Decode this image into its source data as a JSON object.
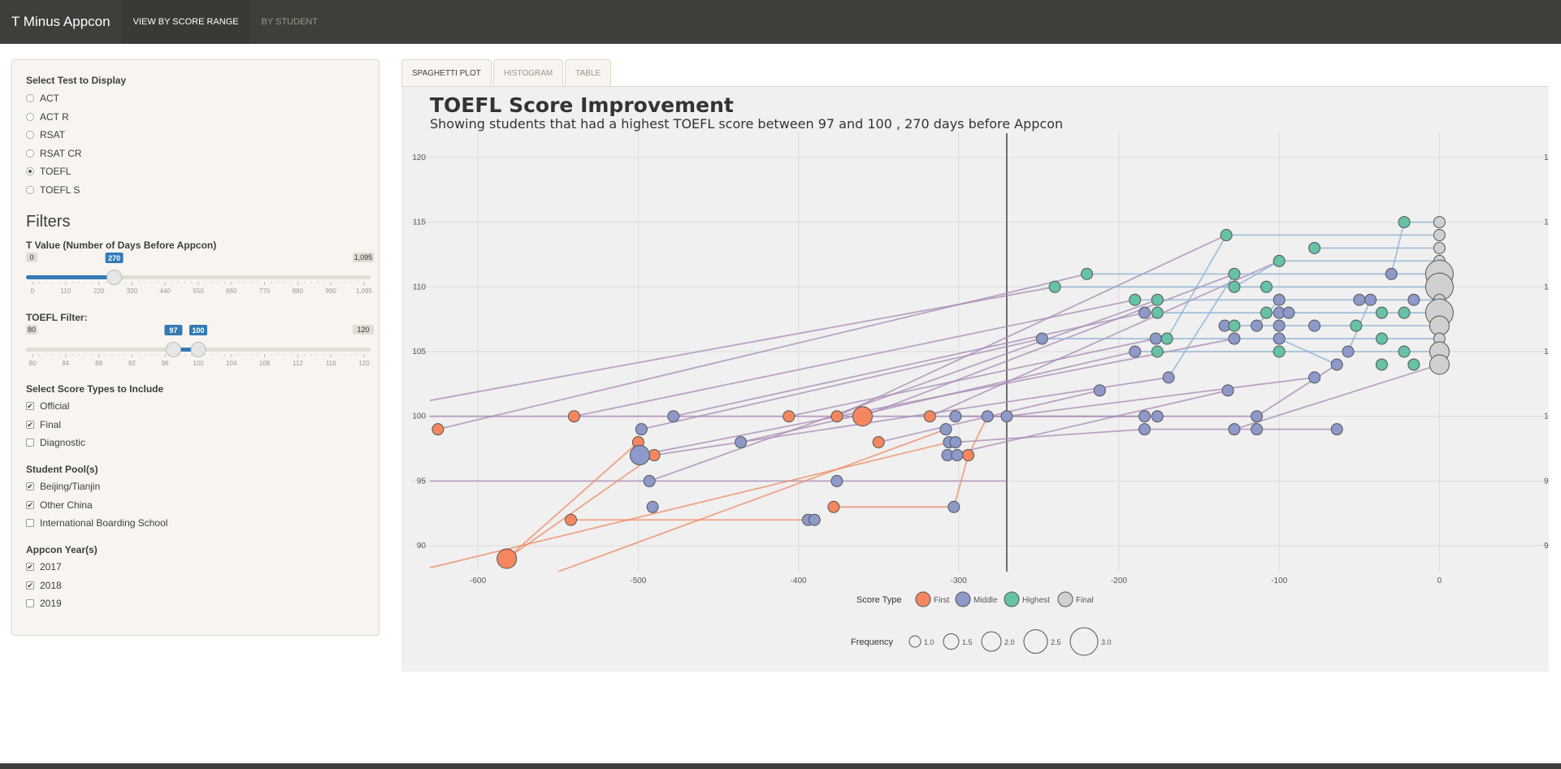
{
  "navbar": {
    "brand": "T Minus Appcon",
    "tabs": [
      {
        "label": "VIEW BY SCORE RANGE",
        "active": true
      },
      {
        "label": "BY STUDENT",
        "active": false
      }
    ]
  },
  "sidebar": {
    "test_select": {
      "label": "Select Test to Display",
      "options": [
        "ACT",
        "ACT R",
        "RSAT",
        "RSAT CR",
        "TOEFL",
        "TOEFL S"
      ],
      "selected": "TOEFL"
    },
    "filters_title": "Filters",
    "t_value": {
      "label": "T Value (Number of Days Before Appcon)",
      "min": 0,
      "max": 1095,
      "value": 270,
      "min_label": "0",
      "max_label": "1,095",
      "value_label": "270",
      "ticks": [
        "0",
        "110",
        "220",
        "330",
        "440",
        "550",
        "660",
        "770",
        "880",
        "990",
        "1,095"
      ]
    },
    "toefl_filter": {
      "label": "TOEFL Filter:",
      "min": 80,
      "max": 120,
      "low": 97,
      "high": 100,
      "min_label": "80",
      "max_label": "120",
      "low_label": "97",
      "high_label": "100",
      "ticks": [
        "80",
        "84",
        "88",
        "92",
        "96",
        "100",
        "104",
        "108",
        "112",
        "116",
        "120"
      ]
    },
    "score_types": {
      "label": "Select Score Types to Include",
      "options": [
        {
          "label": "Official",
          "checked": true
        },
        {
          "label": "Final",
          "checked": true
        },
        {
          "label": "Diagnostic",
          "checked": false
        }
      ]
    },
    "student_pools": {
      "label": "Student Pool(s)",
      "options": [
        {
          "label": "Beijing/Tianjin",
          "checked": true
        },
        {
          "label": "Other China",
          "checked": true
        },
        {
          "label": "International Boarding School",
          "checked": false
        }
      ]
    },
    "appcon_years": {
      "label": "Appcon Year(s)",
      "options": [
        {
          "label": "2017",
          "checked": true
        },
        {
          "label": "2018",
          "checked": true
        },
        {
          "label": "2019",
          "checked": false
        }
      ]
    }
  },
  "tabs": [
    {
      "label": "SPAGHETTI PLOT",
      "active": true
    },
    {
      "label": "HISTOGRAM",
      "active": false
    },
    {
      "label": "TABLE",
      "active": false
    }
  ],
  "colors": {
    "first": "#f4875f",
    "middle": "#8d99c9",
    "highest": "#66c2a5",
    "final": "#d0d0d0",
    "navbar": "#3e3f3a",
    "slider": "#337ab7"
  },
  "chart_data": {
    "type": "scatter",
    "title": "TOEFL Score Improvement",
    "subtitle": "Showing students that had a highest TOEFL score between 97 and 100 , 270 days before Appcon",
    "x_ticks": [
      "-600",
      "-500",
      "-400",
      "-300",
      "-200",
      "-100",
      "0"
    ],
    "y_ticks": [
      "90",
      "95",
      "100",
      "105",
      "110",
      "115",
      "120"
    ],
    "xlim": [
      -630,
      50
    ],
    "ylim": [
      88,
      122
    ],
    "vline_x": -270,
    "legend": {
      "score_type_title": "Score Type",
      "score_types": [
        "First",
        "Middle",
        "Highest",
        "Final"
      ],
      "frequency_title": "Frequency",
      "frequencies": [
        "1.0",
        "1.5",
        "2.0",
        "2.5",
        "3.0"
      ]
    },
    "points": [
      {
        "x": -625,
        "y": 99,
        "type": "First",
        "freq": 1
      },
      {
        "x": -540,
        "y": 100,
        "type": "First",
        "freq": 1
      },
      {
        "x": -542,
        "y": 92,
        "type": "First",
        "freq": 1
      },
      {
        "x": -582,
        "y": 89,
        "type": "First",
        "freq": 2
      },
      {
        "x": -500,
        "y": 98,
        "type": "First",
        "freq": 1
      },
      {
        "x": -490,
        "y": 97,
        "type": "First",
        "freq": 1
      },
      {
        "x": -406,
        "y": 100,
        "type": "First",
        "freq": 1
      },
      {
        "x": -376,
        "y": 100,
        "type": "First",
        "freq": 1
      },
      {
        "x": -360,
        "y": 100,
        "type": "First",
        "freq": 2
      },
      {
        "x": -350,
        "y": 98,
        "type": "First",
        "freq": 1
      },
      {
        "x": -378,
        "y": 93,
        "type": "First",
        "freq": 1
      },
      {
        "x": -318,
        "y": 100,
        "type": "First",
        "freq": 1
      },
      {
        "x": -294,
        "y": 97,
        "type": "First",
        "freq": 1
      },
      {
        "x": -478,
        "y": 100,
        "type": "Middle",
        "freq": 1
      },
      {
        "x": -498,
        "y": 99,
        "type": "Middle",
        "freq": 1
      },
      {
        "x": -499,
        "y": 97,
        "type": "Middle",
        "freq": 2
      },
      {
        "x": -493,
        "y": 95,
        "type": "Middle",
        "freq": 1
      },
      {
        "x": -491,
        "y": 93,
        "type": "Middle",
        "freq": 1
      },
      {
        "x": -436,
        "y": 98,
        "type": "Middle",
        "freq": 1
      },
      {
        "x": -376,
        "y": 95,
        "type": "Middle",
        "freq": 1
      },
      {
        "x": -394,
        "y": 92,
        "type": "Middle",
        "freq": 1
      },
      {
        "x": -390,
        "y": 92,
        "type": "Middle",
        "freq": 1
      },
      {
        "x": -302,
        "y": 100,
        "type": "Middle",
        "freq": 1
      },
      {
        "x": -308,
        "y": 99,
        "type": "Middle",
        "freq": 1
      },
      {
        "x": -306,
        "y": 98,
        "type": "Middle",
        "freq": 1
      },
      {
        "x": -302,
        "y": 98,
        "type": "Middle",
        "freq": 1
      },
      {
        "x": -307,
        "y": 97,
        "type": "Middle",
        "freq": 1
      },
      {
        "x": -301,
        "y": 97,
        "type": "Middle",
        "freq": 1
      },
      {
        "x": -303,
        "y": 93,
        "type": "Middle",
        "freq": 1
      },
      {
        "x": -282,
        "y": 100,
        "type": "Middle",
        "freq": 1
      },
      {
        "x": -270,
        "y": 100,
        "type": "Middle",
        "freq": 1
      },
      {
        "x": -248,
        "y": 106,
        "type": "Middle",
        "freq": 1
      },
      {
        "x": -212,
        "y": 102,
        "type": "Middle",
        "freq": 1
      },
      {
        "x": -190,
        "y": 105,
        "type": "Middle",
        "freq": 1
      },
      {
        "x": -184,
        "y": 108,
        "type": "Middle",
        "freq": 1
      },
      {
        "x": -184,
        "y": 100,
        "type": "Middle",
        "freq": 1
      },
      {
        "x": -184,
        "y": 99,
        "type": "Middle",
        "freq": 1
      },
      {
        "x": -177,
        "y": 106,
        "type": "Middle",
        "freq": 1
      },
      {
        "x": -176,
        "y": 100,
        "type": "Middle",
        "freq": 1
      },
      {
        "x": -169,
        "y": 103,
        "type": "Middle",
        "freq": 1
      },
      {
        "x": -134,
        "y": 107,
        "type": "Middle",
        "freq": 1
      },
      {
        "x": -132,
        "y": 102,
        "type": "Middle",
        "freq": 1
      },
      {
        "x": -128,
        "y": 106,
        "type": "Middle",
        "freq": 1
      },
      {
        "x": -128,
        "y": 99,
        "type": "Middle",
        "freq": 1
      },
      {
        "x": -114,
        "y": 107,
        "type": "Middle",
        "freq": 1
      },
      {
        "x": -114,
        "y": 100,
        "type": "Middle",
        "freq": 1
      },
      {
        "x": -114,
        "y": 99,
        "type": "Middle",
        "freq": 1
      },
      {
        "x": -100,
        "y": 109,
        "type": "Middle",
        "freq": 1
      },
      {
        "x": -100,
        "y": 108,
        "type": "Middle",
        "freq": 1
      },
      {
        "x": -100,
        "y": 107,
        "type": "Middle",
        "freq": 1
      },
      {
        "x": -100,
        "y": 106,
        "type": "Middle",
        "freq": 1
      },
      {
        "x": -94,
        "y": 108,
        "type": "Middle",
        "freq": 1
      },
      {
        "x": -78,
        "y": 107,
        "type": "Middle",
        "freq": 1
      },
      {
        "x": -78,
        "y": 103,
        "type": "Middle",
        "freq": 1
      },
      {
        "x": -64,
        "y": 99,
        "type": "Middle",
        "freq": 1
      },
      {
        "x": -64,
        "y": 104,
        "type": "Middle",
        "freq": 1
      },
      {
        "x": -57,
        "y": 105,
        "type": "Middle",
        "freq": 1
      },
      {
        "x": -50,
        "y": 109,
        "type": "Middle",
        "freq": 1
      },
      {
        "x": -43,
        "y": 109,
        "type": "Middle",
        "freq": 1
      },
      {
        "x": -30,
        "y": 111,
        "type": "Middle",
        "freq": 1
      },
      {
        "x": -16,
        "y": 109,
        "type": "Middle",
        "freq": 1
      },
      {
        "x": -240,
        "y": 110,
        "type": "Highest",
        "freq": 1
      },
      {
        "x": -220,
        "y": 111,
        "type": "Highest",
        "freq": 1
      },
      {
        "x": -190,
        "y": 109,
        "type": "Highest",
        "freq": 1
      },
      {
        "x": -176,
        "y": 109,
        "type": "Highest",
        "freq": 1
      },
      {
        "x": -176,
        "y": 108,
        "type": "Highest",
        "freq": 1
      },
      {
        "x": -170,
        "y": 106,
        "type": "Highest",
        "freq": 1
      },
      {
        "x": -176,
        "y": 105,
        "type": "Highest",
        "freq": 1
      },
      {
        "x": -133,
        "y": 114,
        "type": "Highest",
        "freq": 1
      },
      {
        "x": -128,
        "y": 111,
        "type": "Highest",
        "freq": 1
      },
      {
        "x": -128,
        "y": 110,
        "type": "Highest",
        "freq": 1
      },
      {
        "x": -128,
        "y": 107,
        "type": "Highest",
        "freq": 1
      },
      {
        "x": -108,
        "y": 110,
        "type": "Highest",
        "freq": 1
      },
      {
        "x": -108,
        "y": 108,
        "type": "Highest",
        "freq": 1
      },
      {
        "x": -100,
        "y": 112,
        "type": "Highest",
        "freq": 1
      },
      {
        "x": -100,
        "y": 105,
        "type": "Highest",
        "freq": 1
      },
      {
        "x": -78,
        "y": 113,
        "type": "Highest",
        "freq": 1
      },
      {
        "x": -52,
        "y": 107,
        "type": "Highest",
        "freq": 1
      },
      {
        "x": -36,
        "y": 108,
        "type": "Highest",
        "freq": 1
      },
      {
        "x": -36,
        "y": 106,
        "type": "Highest",
        "freq": 1
      },
      {
        "x": -36,
        "y": 104,
        "type": "Highest",
        "freq": 1
      },
      {
        "x": -22,
        "y": 115,
        "type": "Highest",
        "freq": 1
      },
      {
        "x": -22,
        "y": 108,
        "type": "Highest",
        "freq": 1
      },
      {
        "x": -22,
        "y": 105,
        "type": "Highest",
        "freq": 1
      },
      {
        "x": -16,
        "y": 104,
        "type": "Highest",
        "freq": 1
      },
      {
        "x": 0,
        "y": 115,
        "type": "Final",
        "freq": 1
      },
      {
        "x": 0,
        "y": 114,
        "type": "Final",
        "freq": 1
      },
      {
        "x": 0,
        "y": 113,
        "type": "Final",
        "freq": 1
      },
      {
        "x": 0,
        "y": 112,
        "type": "Final",
        "freq": 1
      },
      {
        "x": 0,
        "y": 111,
        "type": "Final",
        "freq": 3
      },
      {
        "x": 0,
        "y": 110,
        "type": "Final",
        "freq": 3
      },
      {
        "x": 0,
        "y": 109,
        "type": "Final",
        "freq": 1
      },
      {
        "x": 0,
        "y": 108,
        "type": "Final",
        "freq": 3
      },
      {
        "x": 0,
        "y": 107,
        "type": "Final",
        "freq": 2
      },
      {
        "x": 0,
        "y": 106,
        "type": "Final",
        "freq": 1
      },
      {
        "x": 0,
        "y": 105,
        "type": "Final",
        "freq": 2
      },
      {
        "x": 0,
        "y": 104,
        "type": "Final",
        "freq": 2
      }
    ],
    "lines": [
      {
        "x1": -640,
        "y1": 101,
        "x2": -240,
        "y2": 110,
        "color": "purple"
      },
      {
        "x1": -625,
        "y1": 99,
        "x2": -220,
        "y2": 111,
        "color": "purple"
      },
      {
        "x1": -540,
        "y1": 100,
        "x2": -190,
        "y2": 109,
        "color": "purple"
      },
      {
        "x1": -640,
        "y1": 100,
        "x2": -270,
        "y2": 100,
        "color": "purple"
      },
      {
        "x1": -478,
        "y1": 100,
        "x2": -184,
        "y2": 108,
        "color": "purple"
      },
      {
        "x1": -406,
        "y1": 100,
        "x2": -177,
        "y2": 106,
        "color": "purple"
      },
      {
        "x1": -376,
        "y1": 100,
        "x2": -133,
        "y2": 114,
        "color": "purple"
      },
      {
        "x1": -360,
        "y1": 100,
        "x2": -128,
        "y2": 111,
        "color": "purple"
      },
      {
        "x1": -436,
        "y1": 98,
        "x2": -190,
        "y2": 105,
        "color": "purple"
      },
      {
        "x1": -350,
        "y1": 98,
        "x2": -212,
        "y2": 102,
        "color": "purple"
      },
      {
        "x1": -318,
        "y1": 100,
        "x2": -100,
        "y2": 112,
        "color": "purple"
      },
      {
        "x1": -640,
        "y1": 95,
        "x2": -270,
        "y2": 95,
        "color": "purple"
      },
      {
        "x1": -498,
        "y1": 99,
        "x2": -248,
        "y2": 106,
        "color": "purple"
      },
      {
        "x1": -490,
        "y1": 97,
        "x2": -169,
        "y2": 103,
        "color": "purple"
      },
      {
        "x1": -499,
        "y1": 97,
        "x2": -128,
        "y2": 106,
        "color": "purple"
      },
      {
        "x1": -493,
        "y1": 95,
        "x2": -176,
        "y2": 109,
        "color": "purple"
      },
      {
        "x1": -302,
        "y1": 100,
        "x2": -184,
        "y2": 100,
        "color": "purple"
      },
      {
        "x1": -302,
        "y1": 98,
        "x2": -184,
        "y2": 99,
        "color": "purple"
      },
      {
        "x1": -307,
        "y1": 97,
        "x2": -132,
        "y2": 102,
        "color": "purple"
      },
      {
        "x1": -282,
        "y1": 100,
        "x2": -114,
        "y2": 100,
        "color": "purple"
      },
      {
        "x1": -270,
        "y1": 100,
        "x2": -78,
        "y2": 103,
        "color": "purple"
      },
      {
        "x1": -184,
        "y1": 99,
        "x2": -64,
        "y2": 99,
        "color": "purple"
      },
      {
        "x1": -114,
        "y1": 100,
        "x2": -64,
        "y2": 104,
        "color": "purple"
      },
      {
        "x1": -128,
        "y1": 99,
        "x2": 0,
        "y2": 104,
        "color": "purple"
      },
      {
        "x1": -640,
        "y1": 88,
        "x2": -306,
        "y2": 98,
        "color": "orange"
      },
      {
        "x1": -582,
        "y1": 89,
        "x2": -500,
        "y2": 98,
        "color": "orange"
      },
      {
        "x1": -582,
        "y1": 89,
        "x2": -490,
        "y2": 97,
        "color": "orange"
      },
      {
        "x1": -550,
        "y1": 88,
        "x2": -308,
        "y2": 99,
        "color": "orange"
      },
      {
        "x1": -542,
        "y1": 92,
        "x2": -394,
        "y2": 92,
        "color": "orange"
      },
      {
        "x1": -378,
        "y1": 93,
        "x2": -303,
        "y2": 93,
        "color": "orange"
      },
      {
        "x1": -303,
        "y1": 93,
        "x2": -294,
        "y2": 97,
        "color": "orange"
      },
      {
        "x1": -294,
        "y1": 97,
        "x2": -282,
        "y2": 100,
        "color": "orange"
      },
      {
        "x1": -240,
        "y1": 110,
        "x2": 0,
        "y2": 110,
        "color": "blue"
      },
      {
        "x1": -220,
        "y1": 111,
        "x2": 0,
        "y2": 111,
        "color": "blue"
      },
      {
        "x1": -133,
        "y1": 114,
        "x2": 0,
        "y2": 114,
        "color": "blue"
      },
      {
        "x1": -128,
        "y1": 110,
        "x2": -100,
        "y2": 112,
        "color": "blue"
      },
      {
        "x1": -100,
        "y1": 112,
        "x2": 0,
        "y2": 112,
        "color": "blue"
      },
      {
        "x1": -78,
        "y1": 113,
        "x2": 0,
        "y2": 113,
        "color": "blue"
      },
      {
        "x1": -22,
        "y1": 115,
        "x2": 0,
        "y2": 115,
        "color": "blue"
      },
      {
        "x1": -190,
        "y1": 109,
        "x2": 0,
        "y2": 109,
        "color": "blue"
      },
      {
        "x1": -184,
        "y1": 108,
        "x2": 0,
        "y2": 108,
        "color": "blue"
      },
      {
        "x1": -134,
        "y1": 107,
        "x2": 0,
        "y2": 107,
        "color": "blue"
      },
      {
        "x1": -248,
        "y1": 106,
        "x2": 0,
        "y2": 106,
        "color": "blue"
      },
      {
        "x1": -190,
        "y1": 105,
        "x2": 0,
        "y2": 105,
        "color": "blue"
      },
      {
        "x1": -100,
        "y1": 106,
        "x2": -64,
        "y2": 104,
        "color": "blue"
      },
      {
        "x1": -30,
        "y1": 111,
        "x2": -22,
        "y2": 115,
        "color": "blue"
      },
      {
        "x1": -57,
        "y1": 105,
        "x2": -43,
        "y2": 109,
        "color": "blue"
      },
      {
        "x1": -170,
        "y1": 106,
        "x2": -133,
        "y2": 114,
        "color": "blue"
      },
      {
        "x1": -114,
        "y1": 107,
        "x2": -100,
        "y2": 109,
        "color": "blue"
      },
      {
        "x1": -169,
        "y1": 103,
        "x2": -128,
        "y2": 111,
        "color": "blue"
      }
    ]
  }
}
